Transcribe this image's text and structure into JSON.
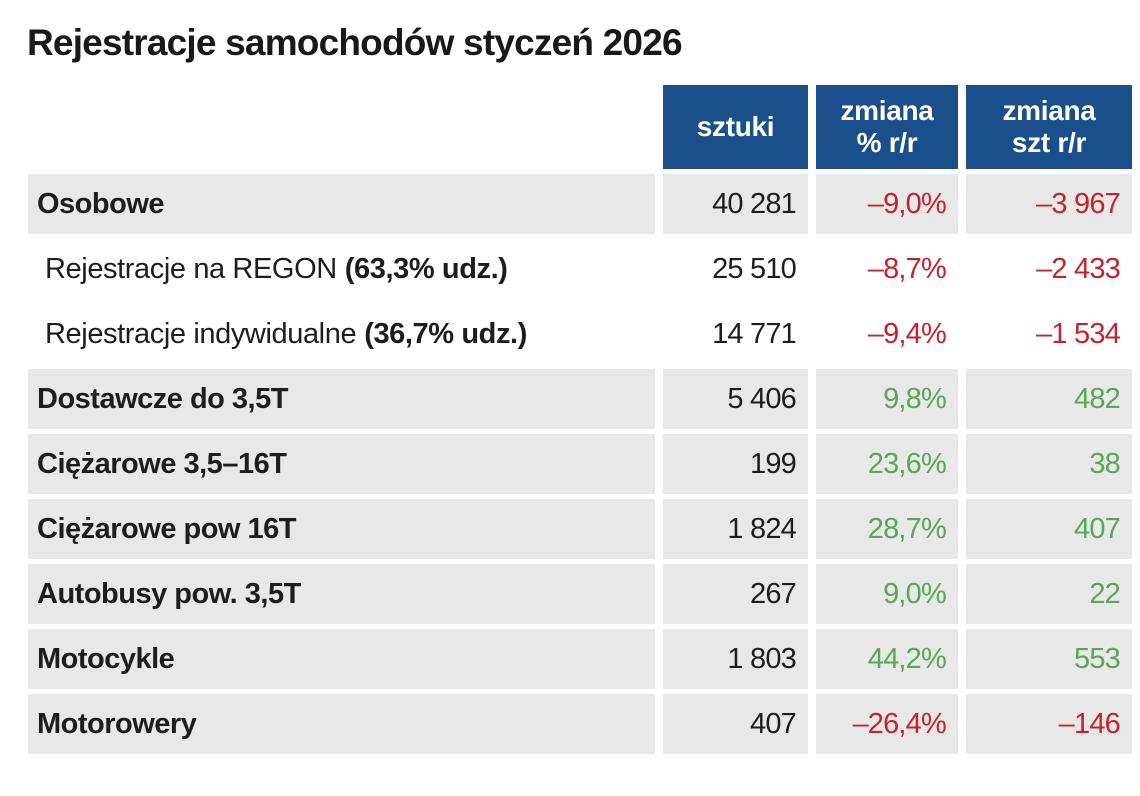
{
  "title": "Rejestracje samochodów styczeń 2026",
  "colors": {
    "header_bg": "#1a4f8c",
    "row_shaded_bg": "#e9e8e8",
    "text": "#1d1d1b",
    "negative": "#c4232d",
    "positive": "#57a757"
  },
  "table": {
    "header": [
      {
        "line1": "sztuki",
        "line2": ""
      },
      {
        "line1": "zmiana",
        "line2": "% r/r"
      },
      {
        "line1": "zmiana",
        "line2": "szt r/r"
      }
    ],
    "rows": [
      {
        "label": "Osobowe",
        "label_suffix": "",
        "sztuki": "40 281",
        "zmiana_pct": "–9,0%",
        "zmiana_szt": "–3 967"
      },
      {
        "label": "Rejestracje na REGON",
        "label_suffix": "(63,3% udz.)",
        "sztuki": "25 510",
        "zmiana_pct": "–8,7%",
        "zmiana_szt": "–2 433"
      },
      {
        "label": "Rejestracje indywidualne",
        "label_suffix": "(36,7% udz.)",
        "sztuki": "14 771",
        "zmiana_pct": "–9,4%",
        "zmiana_szt": "–1 534"
      },
      {
        "label": "Dostawcze do 3,5T",
        "label_suffix": "",
        "sztuki": "5 406",
        "zmiana_pct": "9,8%",
        "zmiana_szt": "482"
      },
      {
        "label": "Ciężarowe 3,5–16T",
        "label_suffix": "",
        "sztuki": "199",
        "zmiana_pct": "23,6%",
        "zmiana_szt": "38"
      },
      {
        "label": "Ciężarowe pow 16T",
        "label_suffix": "",
        "sztuki": "1 824",
        "zmiana_pct": "28,7%",
        "zmiana_szt": "407"
      },
      {
        "label": "Autobusy pow. 3,5T",
        "label_suffix": "",
        "sztuki": "267",
        "zmiana_pct": "9,0%",
        "zmiana_szt": "22"
      },
      {
        "label": "Motocykle",
        "label_suffix": "",
        "sztuki": "1 803",
        "zmiana_pct": "44,2%",
        "zmiana_szt": "553"
      },
      {
        "label": "Motorowery",
        "label_suffix": "",
        "sztuki": "407",
        "zmiana_pct": "–26,4%",
        "zmiana_szt": "–146"
      }
    ]
  },
  "chart_data": {
    "type": "table",
    "title": "Rejestracje samochodów styczeń 2026",
    "columns": [
      "sztuki",
      "zmiana % r/r",
      "zmiana szt r/r"
    ],
    "rows": [
      {
        "kategoria": "Osobowe",
        "sztuki": 40281,
        "zmiana_pct_rr": -9.0,
        "zmiana_szt_rr": -3967
      },
      {
        "kategoria": "Rejestracje na REGON",
        "udzial_pct": 63.3,
        "sztuki": 25510,
        "zmiana_pct_rr": -8.7,
        "zmiana_szt_rr": -2433
      },
      {
        "kategoria": "Rejestracje indywidualne",
        "udzial_pct": 36.7,
        "sztuki": 14771,
        "zmiana_pct_rr": -9.4,
        "zmiana_szt_rr": -1534
      },
      {
        "kategoria": "Dostawcze do 3,5T",
        "sztuki": 5406,
        "zmiana_pct_rr": 9.8,
        "zmiana_szt_rr": 482
      },
      {
        "kategoria": "Ciężarowe 3,5–16T",
        "sztuki": 199,
        "zmiana_pct_rr": 23.6,
        "zmiana_szt_rr": 38
      },
      {
        "kategoria": "Ciężarowe pow 16T",
        "sztuki": 1824,
        "zmiana_pct_rr": 28.7,
        "zmiana_szt_rr": 407
      },
      {
        "kategoria": "Autobusy pow. 3,5T",
        "sztuki": 267,
        "zmiana_pct_rr": 9.0,
        "zmiana_szt_rr": 22
      },
      {
        "kategoria": "Motocykle",
        "sztuki": 1803,
        "zmiana_pct_rr": 44.2,
        "zmiana_szt_rr": 553
      },
      {
        "kategoria": "Motorowery",
        "sztuki": 407,
        "zmiana_pct_rr": -26.4,
        "zmiana_szt_rr": -146
      }
    ]
  }
}
